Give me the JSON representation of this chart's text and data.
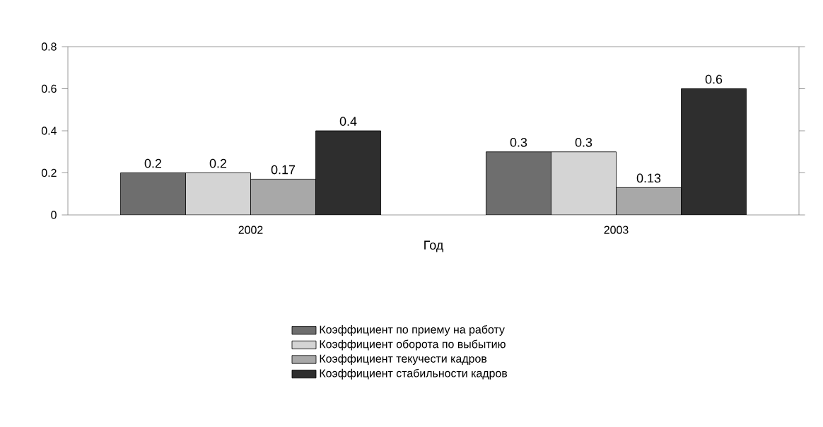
{
  "chart_data": {
    "type": "bar",
    "xlabel": "Год",
    "categories": [
      "2002",
      "2003"
    ],
    "series": [
      {
        "name": "Коэффициент по приему на работу",
        "color": "#6e6e6e",
        "values": [
          0.2,
          0.3
        ]
      },
      {
        "name": "Коэффициент оборота по выбытию",
        "color": "#d4d4d4",
        "values": [
          0.2,
          0.3
        ]
      },
      {
        "name": "Коэффициент текучести кадров",
        "color": "#a8a8a8",
        "values": [
          0.17,
          0.13
        ]
      },
      {
        "name": "Коэффициент стабильности кадров",
        "color": "#2e2e2e",
        "values": [
          0.4,
          0.6
        ]
      }
    ],
    "ylim": [
      0,
      0.8
    ],
    "yticks": [
      0,
      0.2,
      0.4,
      0.6,
      0.8
    ],
    "data_labels": true,
    "legend": "bottom",
    "grid": false
  }
}
